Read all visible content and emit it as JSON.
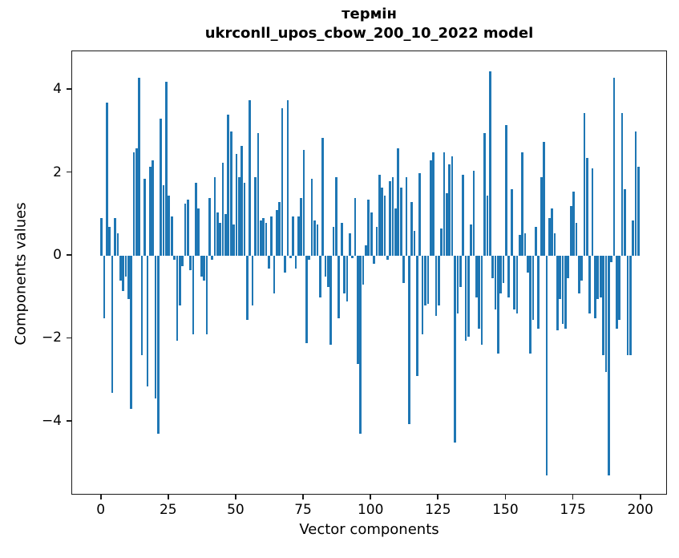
{
  "title": {
    "line1": "термін",
    "line2": "ukrconll_upos_cbow_200_10_2022 model"
  },
  "chart_data": {
    "type": "bar",
    "title": "термін\nukrconll_upos_cbow_200_10_2022 model",
    "xlabel": "Vector components",
    "ylabel": "Components values",
    "bar_color": "#1f77b4",
    "grid": false,
    "legend": null,
    "x_ticks": [
      0,
      25,
      50,
      75,
      100,
      125,
      150,
      175,
      200
    ],
    "y_ticks": [
      -4,
      -2,
      0,
      2,
      4
    ],
    "xlim": [
      -10.9,
      209.9
    ],
    "ylim": [
      -5.78,
      4.93
    ],
    "bar_width_units": 0.8,
    "x_start_index": 0,
    "values": [
      0.9,
      -1.5,
      3.7,
      0.7,
      -3.3,
      0.9,
      0.55,
      -0.6,
      -0.85,
      -0.5,
      -1.05,
      -3.7,
      2.5,
      2.6,
      4.3,
      -2.4,
      1.85,
      -3.15,
      2.15,
      2.3,
      -3.45,
      -4.3,
      3.3,
      1.7,
      4.2,
      1.45,
      0.95,
      -0.1,
      -2.05,
      -1.2,
      -0.25,
      1.25,
      1.35,
      -0.35,
      -1.9,
      1.75,
      1.15,
      -0.5,
      -0.6,
      -1.9,
      1.4,
      -0.1,
      1.9,
      1.05,
      0.8,
      2.25,
      1.0,
      3.4,
      3.0,
      0.75,
      2.45,
      1.9,
      2.65,
      1.75,
      -1.55,
      3.75,
      -1.2,
      1.9,
      2.95,
      0.85,
      0.9,
      0.8,
      -0.3,
      0.95,
      -0.9,
      1.1,
      1.3,
      3.55,
      -0.4,
      3.75,
      -0.05,
      0.95,
      -0.3,
      0.95,
      1.4,
      2.55,
      -2.1,
      -0.1,
      1.85,
      0.85,
      0.75,
      -1.0,
      2.85,
      -0.5,
      -0.75,
      -2.15,
      0.7,
      1.9,
      -1.5,
      0.8,
      -0.9,
      -1.1,
      0.55,
      -0.05,
      1.4,
      -2.6,
      -4.3,
      -0.7,
      0.25,
      1.35,
      1.05,
      -0.2,
      0.7,
      1.95,
      1.65,
      1.45,
      -0.1,
      1.8,
      1.9,
      1.15,
      2.6,
      1.65,
      -0.65,
      1.9,
      -4.05,
      1.3,
      0.6,
      -2.9,
      2.0,
      -1.9,
      -1.2,
      -1.15,
      2.3,
      2.5,
      -1.45,
      -1.2,
      0.65,
      2.5,
      1.5,
      2.2,
      2.4,
      -4.5,
      -1.4,
      -0.75,
      1.95,
      -2.05,
      -1.95,
      0.75,
      2.05,
      -1.0,
      -1.75,
      -2.15,
      2.95,
      1.45,
      4.45,
      -0.55,
      -1.3,
      -2.35,
      -0.9,
      -0.65,
      3.15,
      -1.0,
      1.6,
      -1.3,
      -1.4,
      0.5,
      2.5,
      0.55,
      -0.4,
      -2.35,
      -1.55,
      0.7,
      -1.75,
      1.9,
      2.75,
      -5.3,
      0.9,
      1.15,
      0.55,
      -1.8,
      -1.05,
      -1.65,
      -1.75,
      -0.55,
      1.2,
      1.55,
      0.8,
      -0.9,
      -0.6,
      3.45,
      2.35,
      -1.4,
      2.1,
      -1.5,
      -1.05,
      -1.0,
      -2.4,
      -2.8,
      -5.3,
      -0.15,
      4.3,
      -1.75,
      -1.55,
      3.45,
      1.6,
      -2.4,
      -2.4,
      0.85,
      3.0,
      2.15
    ]
  }
}
